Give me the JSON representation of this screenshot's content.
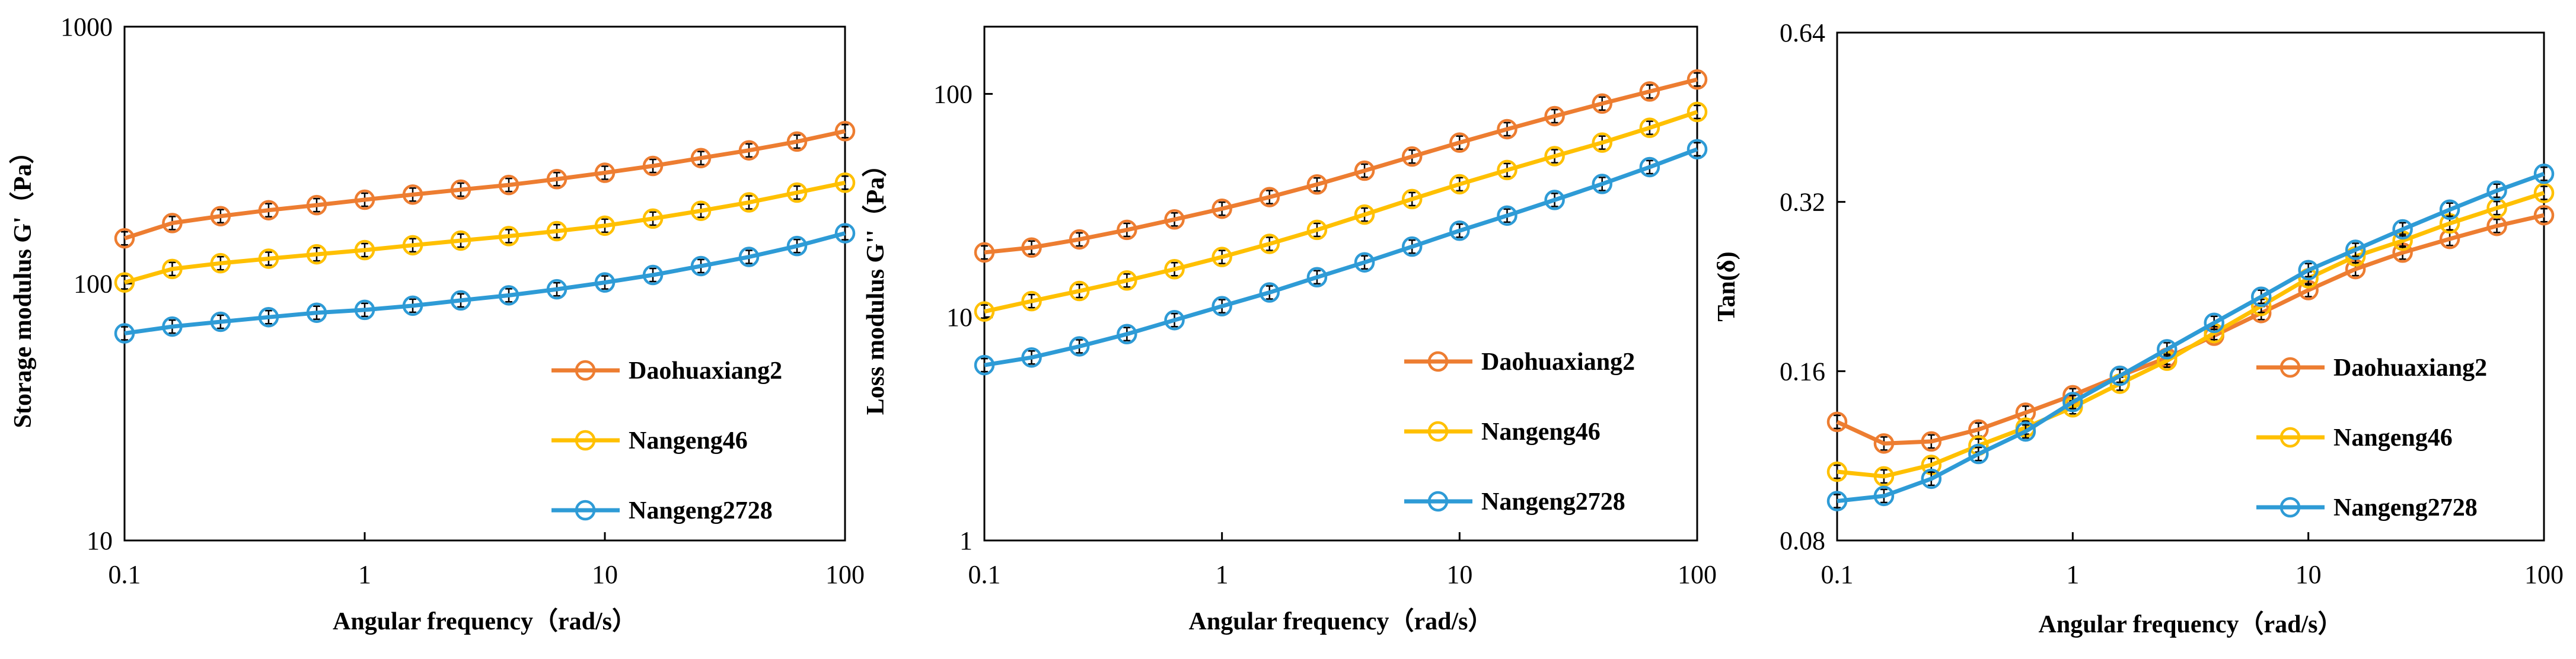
{
  "chart_data": [
    {
      "type": "line",
      "xscale": "log",
      "yscale": "log",
      "xlabel": "Angular frequency（rad/s）",
      "ylabel": "Storage modulus G'（Pa）",
      "xlim": [
        0.1,
        100
      ],
      "ylim": [
        10,
        1000
      ],
      "xticks": [
        0.1,
        1,
        10,
        100
      ],
      "xtick_labels": [
        "0.1",
        "1",
        "10",
        "100"
      ],
      "yticks": [
        10,
        100,
        1000
      ],
      "ytick_labels": [
        "10",
        "100",
        "1000"
      ],
      "legend_position": "lower-right",
      "x": [
        0.1,
        0.158,
        0.251,
        0.398,
        0.631,
        1,
        1.585,
        2.512,
        3.981,
        6.31,
        10,
        15.85,
        25.12,
        39.81,
        63.1,
        100
      ],
      "series": [
        {
          "name": "Daohuaxiang2",
          "color": "#ED7D31",
          "values": [
            150,
            172,
            183,
            193,
            202,
            212,
            222,
            232,
            242,
            255,
            270,
            287,
            308,
            330,
            357,
            392
          ]
        },
        {
          "name": "Nangeng46",
          "color": "#FFC000",
          "values": [
            101,
            114,
            120,
            125,
            130,
            135,
            141,
            147,
            153,
            160,
            168,
            179,
            192,
            207,
            226,
            247
          ]
        },
        {
          "name": "Nangeng2728",
          "color": "#2E9BD6",
          "values": [
            64,
            68,
            71,
            74,
            77,
            79,
            82,
            86,
            90,
            95,
            101,
            108,
            117,
            127,
            140,
            157
          ]
        }
      ]
    },
    {
      "type": "line",
      "xscale": "log",
      "yscale": "log",
      "xlabel": "Angular frequency（rad/s）",
      "ylabel": "Loss modulus G''（Pa）",
      "xlim": [
        0.1,
        100
      ],
      "ylim": [
        1,
        200
      ],
      "xticks": [
        0.1,
        1,
        10,
        100
      ],
      "xtick_labels": [
        "0.1",
        "1",
        "10",
        "100"
      ],
      "yticks": [
        1,
        10,
        100
      ],
      "ytick_labels": [
        "1",
        "10",
        "100"
      ],
      "legend_position": "lower-right",
      "x": [
        0.1,
        0.158,
        0.251,
        0.398,
        0.631,
        1,
        1.585,
        2.512,
        3.981,
        6.31,
        10,
        15.85,
        25.12,
        39.81,
        63.1,
        100
      ],
      "series": [
        {
          "name": "Daohuaxiang2",
          "color": "#ED7D31",
          "values": [
            19.5,
            20.5,
            22.3,
            24.6,
            27.4,
            30.6,
            34.5,
            39.3,
            45.3,
            52.4,
            60.5,
            69.5,
            79.5,
            90.5,
            102.5,
            116
          ]
        },
        {
          "name": "Nangeng46",
          "color": "#FFC000",
          "values": [
            10.6,
            11.8,
            13.1,
            14.6,
            16.4,
            18.6,
            21.3,
            24.6,
            28.8,
            33.8,
            39.4,
            45.6,
            52.6,
            60.5,
            70.5,
            83
          ]
        },
        {
          "name": "Nangeng2728",
          "color": "#2E9BD6",
          "values": [
            6.1,
            6.6,
            7.4,
            8.4,
            9.7,
            11.2,
            12.9,
            15.1,
            17.6,
            20.7,
            24.4,
            28.5,
            33.5,
            39.5,
            47,
            56.5
          ]
        }
      ]
    },
    {
      "type": "line",
      "xscale": "log",
      "yscale": "log",
      "xlabel": "Angular frequency（rad/s）",
      "ylabel": "Tan(δ)",
      "xlim": [
        0.1,
        100
      ],
      "ylim": [
        0.08,
        0.64
      ],
      "xticks": [
        0.1,
        1,
        10,
        100
      ],
      "xtick_labels": [
        "0.1",
        "1",
        "10",
        "100"
      ],
      "yticks": [
        0.08,
        0.16,
        0.32,
        0.64
      ],
      "ytick_labels": [
        "0.08",
        "0.16",
        "0.32",
        "0.64"
      ],
      "legend_position": "lower-right",
      "x": [
        0.1,
        0.158,
        0.251,
        0.398,
        0.631,
        1,
        1.585,
        2.512,
        3.981,
        6.31,
        10,
        15.85,
        25.12,
        39.81,
        63.1,
        100
      ],
      "series": [
        {
          "name": "Daohuaxiang2",
          "color": "#ED7D31",
          "values": [
            0.13,
            0.119,
            0.12,
            0.126,
            0.135,
            0.145,
            0.157,
            0.169,
            0.185,
            0.203,
            0.223,
            0.243,
            0.26,
            0.275,
            0.29,
            0.303
          ]
        },
        {
          "name": "Nangeng46",
          "color": "#FFC000",
          "values": [
            0.106,
            0.104,
            0.109,
            0.118,
            0.127,
            0.138,
            0.152,
            0.167,
            0.187,
            0.209,
            0.234,
            0.256,
            0.273,
            0.293,
            0.312,
            0.332
          ]
        },
        {
          "name": "Nangeng2728",
          "color": "#2E9BD6",
          "values": [
            0.094,
            0.096,
            0.103,
            0.114,
            0.125,
            0.141,
            0.157,
            0.175,
            0.195,
            0.217,
            0.242,
            0.263,
            0.286,
            0.31,
            0.335,
            0.359
          ]
        }
      ]
    }
  ]
}
